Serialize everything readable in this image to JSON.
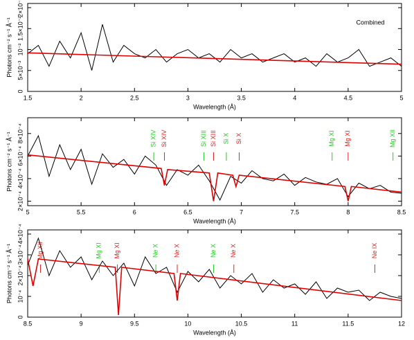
{
  "chart_data": [
    {
      "type": "line",
      "xlabel": "Wavelength (Å)",
      "ylabel": "Photons cm⁻² s⁻¹ Å⁻¹",
      "annotation": "Combined",
      "xlim": [
        1.5,
        5
      ],
      "xticks": [
        1.5,
        2,
        2.5,
        3,
        3.5,
        4,
        4.5,
        5
      ],
      "ylim": [
        0,
        0.021
      ],
      "yticks": [
        0,
        {
          "value": 0.005,
          "label": "5×10⁻³"
        },
        {
          "value": 0.01,
          "label": "10⁻²"
        },
        {
          "value": 0.015,
          "label": "1.5×10⁻²"
        },
        {
          "value": 0.02,
          "label": "2×10⁻²"
        }
      ],
      "series": [
        {
          "color": "#000000",
          "x": [
            1.5,
            1.6,
            1.7,
            1.8,
            1.9,
            2.0,
            2.1,
            2.2,
            2.3,
            2.4,
            2.5,
            2.6,
            2.7,
            2.8,
            2.9,
            3.0,
            3.1,
            3.2,
            3.3,
            3.4,
            3.5,
            3.6,
            3.7,
            3.8,
            3.9,
            4.0,
            4.1,
            4.2,
            4.3,
            4.4,
            4.5,
            4.6,
            4.7,
            4.8,
            4.9,
            5.0
          ],
          "values": [
            0.009,
            0.011,
            0.006,
            0.012,
            0.008,
            0.014,
            0.005,
            0.016,
            0.007,
            0.011,
            0.009,
            0.008,
            0.01,
            0.007,
            0.009,
            0.01,
            0.008,
            0.009,
            0.007,
            0.01,
            0.008,
            0.009,
            0.007,
            0.008,
            0.009,
            0.007,
            0.008,
            0.006,
            0.009,
            0.007,
            0.008,
            0.01,
            0.006,
            0.007,
            0.008,
            0.006
          ]
        },
        {
          "color": "#e00000",
          "x": [
            1.5,
            5
          ],
          "values": [
            0.0092,
            0.0065
          ]
        }
      ],
      "lines": []
    },
    {
      "type": "line",
      "xlabel": "Wavelength (Å)",
      "ylabel": "Photons cm⁻² s⁻¹ Å⁻¹",
      "xlim": [
        5,
        8.5
      ],
      "xticks": [
        5,
        5.5,
        6,
        6.5,
        7,
        7.5,
        8,
        8.5
      ],
      "ylim": [
        0.00016,
        0.00094
      ],
      "yticks": [
        {
          "value": 0.0002,
          "label": "2×10⁻⁴"
        },
        {
          "value": 0.0004,
          "label": "4×10⁻⁴"
        },
        {
          "value": 0.0006,
          "label": "6×10⁻⁴"
        },
        {
          "value": 0.0008,
          "label": "8×10⁻⁴"
        }
      ],
      "series": [
        {
          "color": "#000000",
          "x": [
            5.0,
            5.1,
            5.2,
            5.3,
            5.4,
            5.5,
            5.6,
            5.7,
            5.8,
            5.9,
            6.0,
            6.1,
            6.2,
            6.3,
            6.4,
            6.5,
            6.6,
            6.7,
            6.8,
            6.9,
            7.0,
            7.1,
            7.2,
            7.3,
            7.4,
            7.5,
            7.6,
            7.7,
            7.8,
            7.9,
            8.0,
            8.1,
            8.2,
            8.3,
            8.4,
            8.5
          ],
          "values": [
            0.0006,
            0.00078,
            0.00042,
            0.0007,
            0.00048,
            0.00066,
            0.00035,
            0.00062,
            0.0005,
            0.00057,
            0.00044,
            0.0006,
            0.00052,
            0.00034,
            0.00048,
            0.00043,
            0.00052,
            0.00038,
            0.00021,
            0.00042,
            0.00036,
            0.00047,
            0.0004,
            0.00038,
            0.00044,
            0.00034,
            0.00041,
            0.00037,
            0.00035,
            0.0004,
            0.00024,
            0.00036,
            0.00031,
            0.00034,
            0.00028,
            0.00027
          ]
        },
        {
          "color": "#e00000",
          "x": [
            5,
            6.25,
            6.28,
            6.31,
            6.7,
            6.74,
            6.78,
            6.92,
            6.95,
            6.98,
            7.97,
            8.0,
            8.03,
            8.5
          ],
          "values": [
            0.00061,
            0.00049,
            0.00034,
            0.00048,
            0.00045,
            0.0002,
            0.00045,
            0.00043,
            0.00033,
            0.00043,
            0.00033,
            0.0002,
            0.00033,
            0.00028
          ]
        }
      ],
      "lines": [
        {
          "text": "Si XIV",
          "x": 6.18,
          "color": "#22cc22"
        },
        {
          "text": "Si XIV",
          "x": 6.28,
          "color": "#dd2222"
        },
        {
          "text": "Si XIII",
          "x": 6.65,
          "color": "#22cc22"
        },
        {
          "text": "Si XIII",
          "x": 6.74,
          "color": "#dd2222"
        },
        {
          "text": "Si X",
          "x": 6.86,
          "color": "#22cc22"
        },
        {
          "text": "Si X",
          "x": 6.98,
          "color": "#dd2222"
        },
        {
          "text": "Mg XI",
          "x": 7.85,
          "color": "#22cc22"
        },
        {
          "text": "Mg XI",
          "x": 8.0,
          "color": "#dd2222"
        },
        {
          "text": "Mg XII",
          "x": 8.42,
          "color": "#22cc22"
        }
      ]
    },
    {
      "type": "line",
      "xlabel": "Wavelength (Å)",
      "ylabel": "Photons cm⁻² s⁻¹ Å⁻¹",
      "xlim": [
        8.5,
        12
      ],
      "xticks": [
        8.5,
        9,
        9.5,
        10,
        10.5,
        11,
        11.5,
        12
      ],
      "ylim": [
        0,
        0.00042
      ],
      "yticks": [
        0,
        {
          "value": 0.0001,
          "label": "10⁻⁴"
        },
        {
          "value": 0.0002,
          "label": "2×10⁻⁴"
        },
        {
          "value": 0.0003,
          "label": "3×10⁻⁴"
        },
        {
          "value": 0.0004,
          "label": "4×10⁻⁴"
        }
      ],
      "series": [
        {
          "color": "#000000",
          "x": [
            8.5,
            8.6,
            8.7,
            8.8,
            8.9,
            9.0,
            9.1,
            9.2,
            9.3,
            9.4,
            9.5,
            9.6,
            9.7,
            9.8,
            9.9,
            10.0,
            10.1,
            10.2,
            10.3,
            10.4,
            10.5,
            10.6,
            10.7,
            10.8,
            10.9,
            11.0,
            11.1,
            11.2,
            11.3,
            11.4,
            11.5,
            11.6,
            11.7,
            11.8,
            11.9,
            12.0
          ],
          "values": [
            0.00025,
            0.00038,
            0.0002,
            0.00032,
            0.00024,
            0.00029,
            0.00018,
            0.00027,
            0.0002,
            0.00026,
            0.00015,
            0.00029,
            0.00021,
            0.00024,
            0.00012,
            0.00022,
            0.00017,
            0.00023,
            0.00014,
            0.0002,
            0.00016,
            0.00021,
            0.00012,
            0.00018,
            0.00014,
            0.00016,
            0.00011,
            0.00017,
            9e-05,
            0.00014,
            0.00012,
            0.00013,
            8e-05,
            0.00012,
            0.0001,
            9e-05
          ]
        },
        {
          "color": "#e00000",
          "x": [
            8.5,
            8.55,
            8.6,
            9.32,
            9.35,
            9.38,
            9.87,
            9.9,
            9.93,
            12
          ],
          "values": [
            0.00028,
            0.00015,
            0.00028,
            0.00024,
            1e-05,
            0.00024,
            0.00021,
            8e-05,
            0.00021,
            8e-05
          ]
        }
      ],
      "lines": [
        {
          "text": "Mg XII",
          "x": 8.62,
          "color": "#dd2222"
        },
        {
          "text": "Mg XI",
          "x": 9.17,
          "color": "#22cc22"
        },
        {
          "text": "Mg XI",
          "x": 9.34,
          "color": "#dd2222"
        },
        {
          "text": "Ne X",
          "x": 9.7,
          "color": "#22cc22"
        },
        {
          "text": "Ne X",
          "x": 9.9,
          "color": "#dd2222"
        },
        {
          "text": "Ne X",
          "x": 10.24,
          "color": "#22cc22"
        },
        {
          "text": "Ne X",
          "x": 10.43,
          "color": "#dd2222"
        },
        {
          "text": "Ne IX",
          "x": 11.75,
          "color": "#dd2222"
        }
      ]
    }
  ]
}
